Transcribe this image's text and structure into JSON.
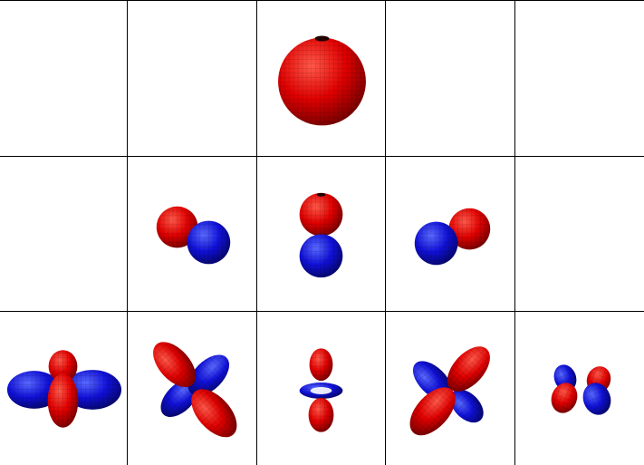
{
  "figure": {
    "colors": {
      "positive": "#e00000",
      "negative": "#1010d8",
      "mesh": "#3a0000",
      "grid_line": "#000000"
    },
    "rows": [
      {
        "cells": [
          {
            "orbital": "empty"
          },
          {
            "orbital": "empty"
          },
          {
            "orbital": "s"
          },
          {
            "orbital": "empty"
          },
          {
            "orbital": "empty"
          }
        ]
      },
      {
        "cells": [
          {
            "orbital": "empty"
          },
          {
            "orbital": "p-left"
          },
          {
            "orbital": "p-vertical"
          },
          {
            "orbital": "p-right"
          },
          {
            "orbital": "empty"
          }
        ]
      },
      {
        "cells": [
          {
            "orbital": "d-x2y2"
          },
          {
            "orbital": "d-diag-a"
          },
          {
            "orbital": "d-z2"
          },
          {
            "orbital": "d-diag-b"
          },
          {
            "orbital": "d-small"
          }
        ]
      }
    ]
  }
}
